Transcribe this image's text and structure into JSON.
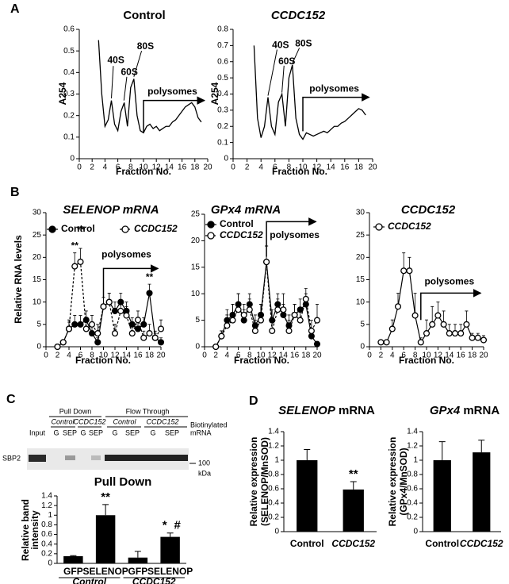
{
  "panel_labels": [
    "A",
    "B",
    "C",
    "D"
  ],
  "blot": {
    "lane_groups": [
      "Pull Down",
      "Flow Through"
    ],
    "conditions": [
      "Control",
      "CCDC152",
      "Control",
      "CCDC152"
    ],
    "lanes": [
      "G",
      "SEP",
      "G",
      "SEP",
      "G",
      "SEP",
      "G",
      "SEP"
    ],
    "input": "Input",
    "protein": "SBP2",
    "probe": [
      "Biotinylated",
      "mRNA"
    ],
    "marker": "100",
    "marker_unit": "kDa"
  },
  "chart_data": [
    {
      "type": "line",
      "title": "Control",
      "xlabel": "Fraction No.",
      "ylabel": "A254",
      "x": [
        3,
        3.5,
        4,
        4.5,
        5,
        5.5,
        6,
        6.5,
        7,
        7.5,
        8,
        8.5,
        9,
        9.5,
        10,
        10.5,
        11,
        11.5,
        12,
        12.5,
        13,
        13.5,
        14,
        14.5,
        15,
        15.5,
        16,
        16.5,
        17,
        17.5,
        18,
        18.5,
        19
      ],
      "series": [
        {
          "color": "#000000",
          "values": [
            0.55,
            0.3,
            0.15,
            0.18,
            0.27,
            0.16,
            0.13,
            0.22,
            0.26,
            0.15,
            0.33,
            0.37,
            0.2,
            0.13,
            0.12,
            0.15,
            0.16,
            0.14,
            0.15,
            0.13,
            0.14,
            0.15,
            0.15,
            0.17,
            0.18,
            0.2,
            0.22,
            0.24,
            0.25,
            0.26,
            0.24,
            0.19,
            0.17
          ]
        }
      ],
      "xlim": [
        0,
        20
      ],
      "ylim": [
        0,
        0.6
      ],
      "xticks": [
        0,
        2,
        4,
        6,
        8,
        10,
        12,
        14,
        16,
        18,
        20
      ],
      "yticks": [
        0,
        0.1,
        0.2,
        0.3,
        0.4,
        0.5,
        0.6
      ],
      "annotations": [
        "40S",
        "60S",
        "80S",
        "polysomes"
      ]
    },
    {
      "type": "line",
      "title": "CCDC152",
      "xlabel": "Fraction No.",
      "ylabel": "A254",
      "x": [
        3,
        3.5,
        4,
        4.5,
        5,
        5.5,
        6,
        6.5,
        7,
        7.5,
        8,
        8.5,
        9,
        9.5,
        10,
        10.5,
        11,
        11.5,
        12,
        12.5,
        13,
        13.5,
        14,
        14.5,
        15,
        15.5,
        16,
        16.5,
        17,
        17.5,
        18,
        18.5,
        19
      ],
      "series": [
        {
          "color": "#000000",
          "values": [
            0.7,
            0.25,
            0.13,
            0.2,
            0.38,
            0.2,
            0.15,
            0.35,
            0.4,
            0.2,
            0.5,
            0.58,
            0.25,
            0.15,
            0.12,
            0.16,
            0.15,
            0.14,
            0.15,
            0.16,
            0.17,
            0.16,
            0.18,
            0.2,
            0.2,
            0.22,
            0.23,
            0.25,
            0.27,
            0.29,
            0.31,
            0.3,
            0.27
          ]
        }
      ],
      "xlim": [
        0,
        20
      ],
      "ylim": [
        0,
        0.8
      ],
      "xticks": [
        0,
        2,
        4,
        6,
        8,
        10,
        12,
        14,
        16,
        18,
        20
      ],
      "yticks": [
        0,
        0.1,
        0.2,
        0.3,
        0.4,
        0.5,
        0.6,
        0.7,
        0.8
      ],
      "annotations": [
        "40S",
        "60S",
        "80S",
        "polysomes"
      ]
    },
    {
      "type": "line",
      "title": "SELENOP mRNA",
      "xlabel": "Fraction No.",
      "ylabel": "Relative RNA levels",
      "x": [
        2,
        3,
        4,
        5,
        6,
        7,
        8,
        9,
        10,
        11,
        12,
        13,
        14,
        15,
        16,
        17,
        18,
        19,
        20
      ],
      "series": [
        {
          "name": "Control",
          "color": "#000000",
          "marker": "filled",
          "line_style": "solid",
          "values": [
            0,
            1,
            4,
            5,
            5,
            6,
            3,
            1,
            9,
            10,
            8,
            10,
            8,
            5,
            4,
            5,
            12,
            2,
            1
          ],
          "errors": [
            0.3,
            0.5,
            1.5,
            2,
            2,
            2,
            2,
            1,
            2,
            2,
            2,
            2,
            2,
            1.5,
            1.5,
            1.5,
            2,
            1,
            1
          ]
        },
        {
          "name": "CCDC152",
          "color": "#000000",
          "marker": "open",
          "line_style": "dashed",
          "values": [
            0,
            1,
            4,
            18,
            19,
            4,
            5,
            3,
            9,
            10,
            3,
            8,
            7,
            3,
            6,
            2,
            3,
            2,
            4
          ],
          "errors": [
            0.3,
            0.5,
            2,
            3,
            3,
            2,
            2,
            2,
            2,
            2,
            2,
            2,
            2,
            2,
            2,
            1.5,
            2,
            1.5,
            2
          ]
        }
      ],
      "xlim": [
        0,
        20
      ],
      "ylim": [
        0,
        30
      ],
      "xticks": [
        0,
        2,
        4,
        6,
        8,
        10,
        12,
        14,
        16,
        18,
        20
      ],
      "yticks": [
        0,
        5,
        10,
        15,
        20,
        25,
        30
      ],
      "annotations": [
        "**",
        "**",
        "**",
        "polysomes"
      ]
    },
    {
      "type": "line",
      "title": "GPx4 mRNA",
      "xlabel": "Fraction No.",
      "x": [
        2,
        3,
        4,
        5,
        6,
        7,
        8,
        9,
        10,
        11,
        12,
        13,
        14,
        15,
        16,
        17,
        18,
        19,
        20
      ],
      "series": [
        {
          "name": "Control",
          "color": "#000000",
          "marker": "filled",
          "line_style": "solid",
          "values": [
            0,
            2,
            5,
            6,
            8,
            5,
            8,
            4,
            6,
            16,
            5,
            8,
            6,
            4,
            6,
            7,
            8,
            2,
            0.5
          ],
          "errors": [
            0.3,
            1,
            2,
            2,
            2,
            2,
            2,
            2,
            2,
            3,
            2,
            2,
            2,
            2,
            2,
            2,
            2,
            1,
            0.5
          ]
        },
        {
          "name": "CCDC152",
          "color": "#000000",
          "marker": "open",
          "line_style": "dashed",
          "values": [
            0,
            2,
            4,
            5,
            7,
            6,
            7,
            3,
            5,
            16,
            3,
            7,
            7,
            3,
            6,
            5,
            9,
            3,
            5
          ],
          "errors": [
            0.3,
            1,
            2,
            3,
            3,
            2,
            2,
            2,
            3,
            3,
            2,
            2,
            3,
            2,
            2,
            2,
            2,
            2,
            3
          ]
        }
      ],
      "xlim": [
        0,
        20
      ],
      "ylim": [
        0,
        25
      ],
      "xticks": [
        0,
        2,
        4,
        6,
        8,
        10,
        12,
        14,
        16,
        18,
        20
      ],
      "yticks": [
        0,
        5,
        10,
        15,
        20,
        25
      ],
      "annotations": [
        "polysomes"
      ]
    },
    {
      "type": "line",
      "title": "CCDC152",
      "xlabel": "Fraction No.",
      "x": [
        2,
        3,
        4,
        5,
        6,
        7,
        8,
        9,
        10,
        11,
        12,
        13,
        14,
        15,
        16,
        17,
        18,
        19,
        20
      ],
      "series": [
        {
          "name": "CCDC152",
          "color": "#000000",
          "marker": "open",
          "line_style": "solid",
          "values": [
            1,
            1,
            4,
            9,
            17,
            17,
            7,
            1,
            3,
            5,
            7,
            5,
            3,
            3,
            3,
            5,
            2,
            2,
            1.5
          ],
          "errors": [
            0.3,
            0.5,
            2,
            3,
            4,
            3,
            5,
            1,
            3,
            4,
            3,
            3,
            2,
            2,
            2,
            3,
            1,
            1,
            1
          ]
        }
      ],
      "xlim": [
        0,
        20
      ],
      "ylim": [
        0,
        30
      ],
      "xticks": [
        0,
        2,
        4,
        6,
        8,
        10,
        12,
        14,
        16,
        18,
        20
      ],
      "yticks": [
        0,
        5,
        10,
        15,
        20,
        25,
        30
      ],
      "annotations": [
        "polysomes"
      ]
    },
    {
      "type": "bar",
      "title": "Pull Down",
      "ylabel": [
        "Relative band",
        "intensity"
      ],
      "categories": [
        "GFP",
        "SELENOP",
        "GFP",
        "SELENOP"
      ],
      "groups": [
        "Control",
        "CCDC152"
      ],
      "values": [
        0.15,
        1.0,
        0.12,
        0.55
      ],
      "errors": [
        0.01,
        0.22,
        0.13,
        0.08
      ],
      "color": "#000000",
      "ylim": [
        0,
        1.4
      ],
      "yticks": [
        0,
        0.2,
        0.4,
        0.6,
        0.8,
        1,
        1.2,
        1.4
      ],
      "annotations": [
        "**",
        "*",
        "#"
      ]
    },
    {
      "type": "bar",
      "title": "SELENOP mRNA",
      "ylabel": [
        "Relative expression",
        "(SELENOP/MnSOD)"
      ],
      "categories": [
        "Control",
        "CCDC152"
      ],
      "values": [
        1.0,
        0.59
      ],
      "errors": [
        0.15,
        0.11
      ],
      "color": "#000000",
      "ylim": [
        0,
        1.4
      ],
      "yticks": [
        0,
        0.2,
        0.4,
        0.6,
        0.8,
        1,
        1.2,
        1.4
      ],
      "annotations": [
        "**"
      ]
    },
    {
      "type": "bar",
      "title": "GPx4 mRNA",
      "ylabel": [
        "Relative expression",
        "(GPx4/MnSOD)"
      ],
      "categories": [
        "Control",
        "CCDC152"
      ],
      "values": [
        1.0,
        1.11
      ],
      "errors": [
        0.26,
        0.17
      ],
      "color": "#000000",
      "ylim": [
        0,
        1.4
      ],
      "yticks": [
        0,
        0.2,
        0.4,
        0.6,
        0.8,
        1,
        1.2,
        1.4
      ],
      "annotations": []
    }
  ]
}
